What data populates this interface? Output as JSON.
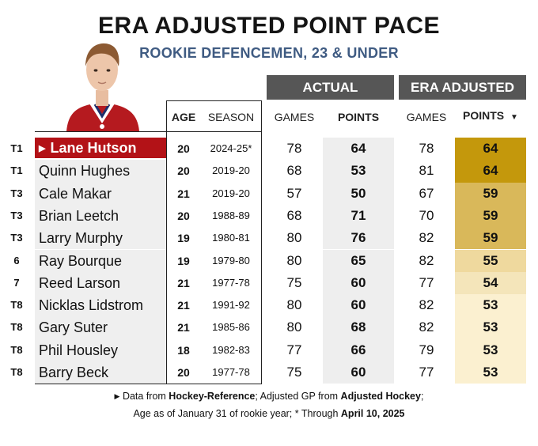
{
  "title": "ERA ADJUSTED POINT PACE",
  "subtitle": "ROOKIE DEFENCEMEN, 23 & UNDER",
  "group_headers": {
    "actual": "ACTUAL",
    "era_adjusted": "ERA ADJUSTED"
  },
  "column_headers": {
    "age": "AGE",
    "season": "SEASON",
    "actual_games": "GAMES",
    "actual_points": "POINTS",
    "era_games": "GAMES",
    "era_points": "POINTS",
    "sort_indicator": "▼"
  },
  "colors": {
    "highlight_name": "#b31217",
    "header_bar": "#565656",
    "subtitle": "#3f5b82",
    "scale_64": "#c4980c",
    "scale_59": "#d9b85a",
    "scale_55": "#efd99e",
    "scale_54": "#f4e5ba",
    "scale_53": "#fbf0d0"
  },
  "chart_data": {
    "type": "table",
    "title": "ERA ADJUSTED POINT PACE",
    "subtitle": "ROOKIE DEFENCEMEN, 23 & UNDER",
    "columns": [
      "Rank",
      "Player",
      "Age",
      "Season",
      "Actual Games",
      "Actual Points",
      "Era Adjusted Games",
      "Era Adjusted Points"
    ],
    "sorted_by": "Era Adjusted Points",
    "rows": [
      {
        "rank": "T1",
        "player": "Lane Hutson",
        "age": "20",
        "season": "2024-25*",
        "actual_games": "78",
        "actual_points": "64",
        "era_games": "78",
        "era_points": "64",
        "highlight": true
      },
      {
        "rank": "T1",
        "player": "Quinn Hughes",
        "age": "20",
        "season": "2019-20",
        "actual_games": "68",
        "actual_points": "53",
        "era_games": "81",
        "era_points": "64"
      },
      {
        "rank": "T3",
        "player": "Cale Makar",
        "age": "21",
        "season": "2019-20",
        "actual_games": "57",
        "actual_points": "50",
        "era_games": "67",
        "era_points": "59"
      },
      {
        "rank": "T3",
        "player": "Brian Leetch",
        "age": "20",
        "season": "1988-89",
        "actual_games": "68",
        "actual_points": "71",
        "era_games": "70",
        "era_points": "59"
      },
      {
        "rank": "T3",
        "player": "Larry Murphy",
        "age": "19",
        "season": "1980-81",
        "actual_games": "80",
        "actual_points": "76",
        "era_games": "82",
        "era_points": "59"
      },
      {
        "rank": "6",
        "player": "Ray Bourque",
        "age": "19",
        "season": "1979-80",
        "actual_games": "80",
        "actual_points": "65",
        "era_games": "82",
        "era_points": "55"
      },
      {
        "rank": "7",
        "player": "Reed Larson",
        "age": "21",
        "season": "1977-78",
        "actual_games": "75",
        "actual_points": "60",
        "era_games": "77",
        "era_points": "54"
      },
      {
        "rank": "T8",
        "player": "Nicklas Lidstrom",
        "age": "21",
        "season": "1991-92",
        "actual_games": "80",
        "actual_points": "60",
        "era_games": "82",
        "era_points": "53"
      },
      {
        "rank": "T8",
        "player": "Gary Suter",
        "age": "21",
        "season": "1985-86",
        "actual_games": "80",
        "actual_points": "68",
        "era_games": "82",
        "era_points": "53"
      },
      {
        "rank": "T8",
        "player": "Phil Housley",
        "age": "18",
        "season": "1982-83",
        "actual_games": "77",
        "actual_points": "66",
        "era_games": "79",
        "era_points": "53"
      },
      {
        "rank": "T8",
        "player": "Barry Beck",
        "age": "20",
        "season": "1977-78",
        "actual_games": "75",
        "actual_points": "60",
        "era_games": "77",
        "era_points": "53"
      }
    ]
  },
  "footer": {
    "line1_prefix": "Data from ",
    "line1_src1": "Hockey-Reference",
    "line1_mid": "; Adjusted GP from ",
    "line1_src2": "Adjusted Hockey",
    "line1_suffix": ";",
    "line2_prefix": "Age as of January 31 of rookie year; * Through ",
    "line2_date": "April 10, 2025"
  }
}
